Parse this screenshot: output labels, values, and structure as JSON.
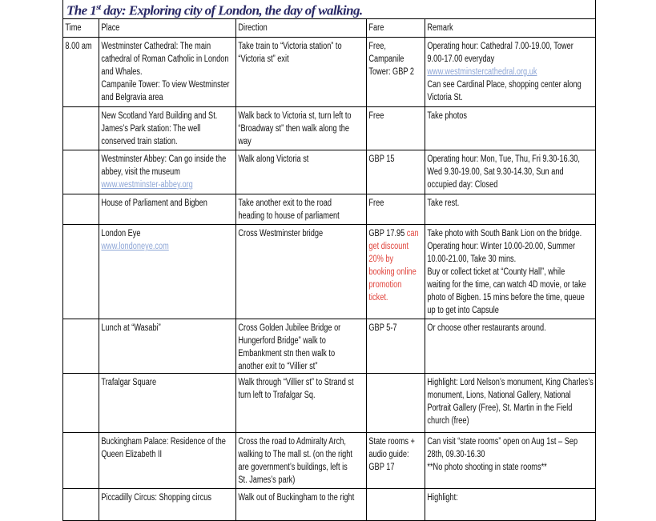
{
  "title": {
    "main_pre": "The 1",
    "sup": "st",
    "main_post": " day: Exploring city of London, the day of walking."
  },
  "headers": [
    "Time",
    "Place",
    "Direction",
    "Fare",
    "Remark"
  ],
  "colors": {
    "title": "#2a2a66",
    "link": "#8ea6d6",
    "highlight_red": "#e0443c"
  },
  "rows": [
    {
      "time": "8.00 am",
      "place": "Westminster Cathedral: The main\ncathedral of Roman Catholic in London\nand Whales.\nCampanile Tower: To view Westminster\nand Belgravia area",
      "place_link": "",
      "direction": "Take train to “Victoria station” to\n“Victoria st” exit",
      "fare": "Free,\nCampanile\nTower: GBP 2",
      "fare_red": "",
      "remark_pre": " Operating hour: Cathedral 7.00-19.00, Tower\n9.00-17.00 everyday",
      "remark_link": "www.westminstercathedral.org.uk",
      "remark_post": "Can see Cardinal Place, shopping center along\nVictoria St."
    },
    {
      "time": "",
      "place": "New Scotland Yard Building and St.\nJames’s Park station: The well\nconserved train station.",
      "place_link": "",
      "direction": "Walk back to Victoria st, turn left to\n“Broadway st” then walk along the\nway",
      "fare": "Free",
      "fare_red": "",
      "remark_pre": "Take photos",
      "remark_link": "",
      "remark_post": ""
    },
    {
      "time": "",
      "place": "Westminster Abbey: Can go inside the\nabbey, visit the museum",
      "place_link": "www.westminster-abbey.org",
      "direction": "Walk along Victoria st",
      "fare": "GBP 15",
      "fare_red": "",
      "remark_pre": "Operating hour: Mon, Tue, Thu, Fri 9.30-16.30,\nWed 9.30-19.00, Sat 9.30-14.30, Sun and\noccupied day: Closed",
      "remark_link": "",
      "remark_post": ""
    },
    {
      "time": "",
      "place": "House of Parliament and Bigben",
      "place_link": "",
      "direction": "Take another exit to the road\nheading to house of parliament",
      "fare": "Free",
      "fare_red": "",
      "remark_pre": "Take rest.",
      "remark_link": "",
      "remark_post": ""
    },
    {
      "time": "",
      "place": "London Eye",
      "place_link": "www.londoneye.com",
      "direction": "Cross Westminster bridge",
      "fare": "GBP 17.95",
      "fare_red": " can\nget discount\n20% by\nbooking online\npromotion\nticket.",
      "remark_pre": "Take photo with South Bank Lion on the bridge.\nOperating hour: Winter 10.00-20.00, Summer\n10.00-21.00, Take 30 mins.\nBuy or collect ticket at “County Hall”, while\nwaiting for the time, can watch 4D movie, or take\nphoto of Bigben. 15 mins before the time, queue\nup to get into Capsule",
      "remark_link": "",
      "remark_post": ""
    },
    {
      "time": "",
      "place": "Lunch at “Wasabi”",
      "place_link": "",
      "direction": "Cross Golden Jubilee Bridge or\nHungerford Bridge” walk to\nEmbankment stn then walk to\nanother exit to “Villier st”",
      "fare": "GBP 5-7",
      "fare_red": "",
      "remark_pre": "Or choose other restaurants around.",
      "remark_link": "",
      "remark_post": ""
    },
    {
      "time": "",
      "place": "Trafalgar Square",
      "place_link": "",
      "direction": "Walk through “Villier st” to Strand st\nturn left to Trafalgar Sq.",
      "fare": "",
      "fare_red": "",
      "remark_pre": "Highlight: Lord Nelson’s monument, King Charles’s\nmonument, Lions, National Gallery, National\nPortrait Gallery (Free), St. Martin in the Field\nchurch (free)",
      "remark_link": "",
      "remark_post": ""
    },
    {
      "time": "",
      "place": "Buckingham Palace: Residence of the\nQueen Elizabeth II",
      "place_link": "",
      "direction": "Cross the road to Admiralty Arch,\nwalking to The mall st. (on the right\nare government’s buildings, left is\nSt. James’s park)",
      "fare": "State rooms +\naudio guide:\nGBP 17",
      "fare_red": "",
      "remark_pre": "Can visit “state rooms” open on Aug 1st – Sep\n28th, 09.30-16.30\n**No photo shooting in state rooms**",
      "remark_link": "",
      "remark_post": ""
    },
    {
      "time": "",
      "place": "Piccadilly Circus: Shopping circus",
      "place_link": "",
      "direction": "Walk out of Buckingham to the right",
      "fare": "",
      "fare_red": "",
      "remark_pre": "Highlight:",
      "remark_link": "",
      "remark_post": ""
    }
  ]
}
